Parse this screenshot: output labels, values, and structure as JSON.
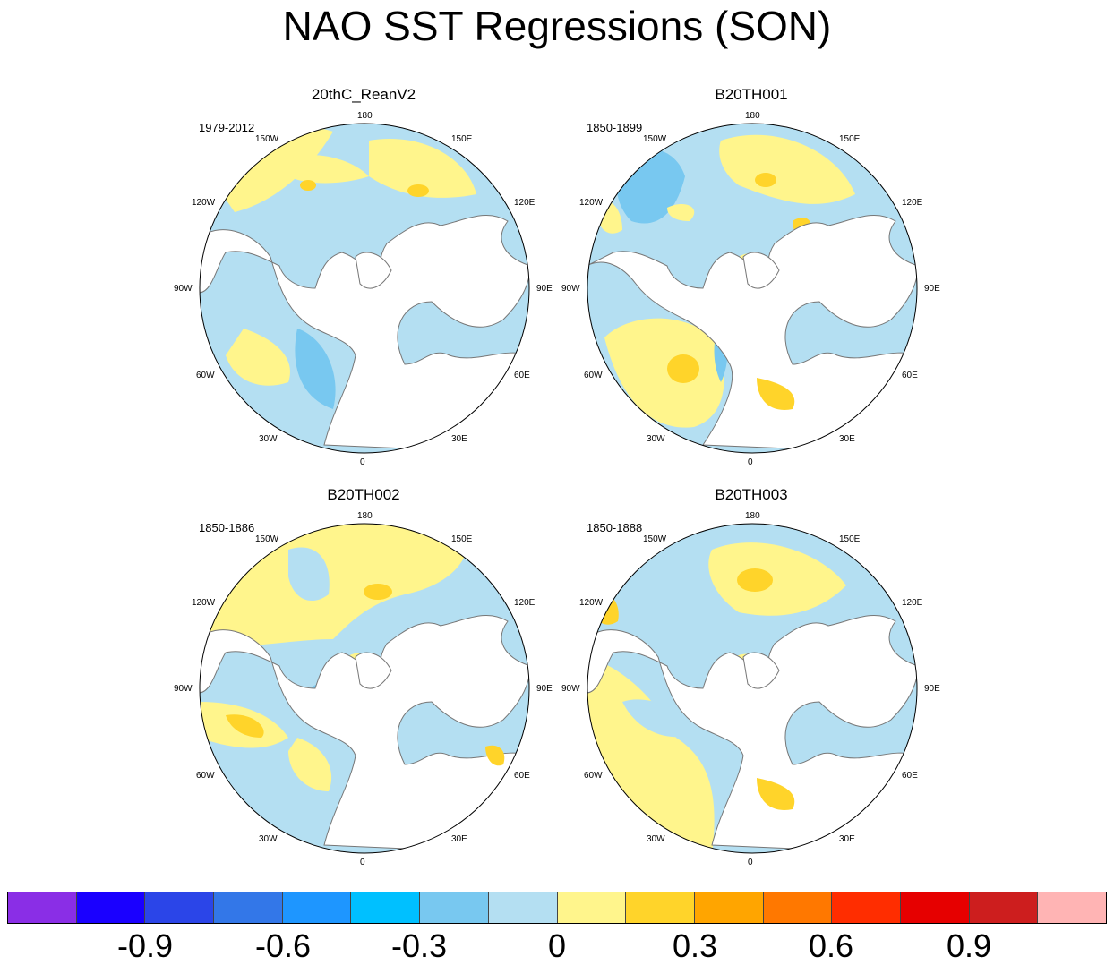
{
  "title": "NAO SST Regressions (SON)",
  "colors": {
    "land": "#ffffff",
    "coast": "#777777",
    "levels": [
      "#8a2ee6",
      "#1a00ff",
      "#2b45e8",
      "#3377e8",
      "#1e96ff",
      "#00c0ff",
      "#78c8f0",
      "#b4dff2",
      "#fff58c",
      "#ffd42a",
      "#ffa500",
      "#ff7800",
      "#ff2d00",
      "#e60000",
      "#cd1e1e",
      "#ffb4b4"
    ]
  },
  "panels": [
    {
      "title": "20thC_ReanV2",
      "period": "1979-2012"
    },
    {
      "title": "B20TH001",
      "period": "1850-1899"
    },
    {
      "title": "B20TH002",
      "period": "1850-1886"
    },
    {
      "title": "B20TH003",
      "period": "1850-1888"
    }
  ],
  "lon_labels": {
    "top": "180",
    "bottom": "0",
    "left_upper": "150W",
    "left_mid1": "120W",
    "left_mid2": "90W",
    "left_mid3": "60W",
    "left_lower": "30W",
    "right_upper": "150E",
    "right_mid1": "120E",
    "right_mid2": "90E",
    "right_mid3": "60E",
    "right_lower": "30E"
  },
  "colorbar": {
    "tick_labels": [
      "-0.9",
      "-0.6",
      "-0.3",
      "0",
      "0.3",
      "0.6",
      "0.9"
    ]
  }
}
